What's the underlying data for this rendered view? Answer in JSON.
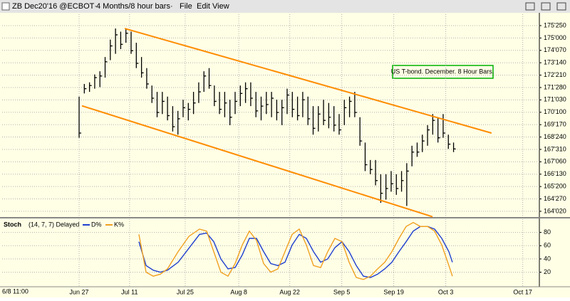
{
  "window": {
    "symbol": "ZB Dec20'16 @ECBOT·",
    "period": "4 Months/8 hour bars·",
    "menus": [
      "File",
      "Edit",
      "View"
    ],
    "timestamp": "6/8 11:00"
  },
  "chart_data": [
    {
      "type": "ohlc",
      "annotation": "US T-bond. December. 8 Hour Bars.",
      "color": "#000000",
      "x": [
        0,
        1,
        2,
        3,
        4,
        5,
        6,
        7,
        8,
        9,
        10,
        11,
        12,
        13,
        14,
        15,
        16,
        17,
        18,
        19,
        20,
        21,
        22,
        23,
        24,
        25,
        26,
        27,
        28,
        29,
        30,
        31,
        32,
        33,
        34,
        35,
        36,
        37,
        38,
        39,
        40,
        41,
        42,
        43,
        44,
        45,
        46,
        47,
        48,
        49,
        50,
        51,
        52,
        53,
        54,
        55,
        56,
        57,
        58,
        59,
        60,
        61,
        62,
        63,
        64,
        65,
        66,
        67,
        68,
        69,
        70,
        71,
        72
      ],
      "high": [
        171.3,
        172.1,
        172.2,
        172.7,
        172.9,
        173.8,
        174.9,
        175.6,
        175.4,
        175.6,
        175.4,
        174.7,
        173.8,
        173.1,
        172.0,
        171.6,
        171.6,
        171.3,
        170.7,
        170.4,
        171.1,
        170.9,
        171.6,
        172.2,
        172.9,
        173.1,
        172.0,
        171.6,
        171.6,
        171.1,
        171.6,
        172.0,
        172.2,
        172.2,
        171.6,
        171.3,
        171.6,
        171.6,
        171.1,
        171.1,
        171.8,
        171.6,
        171.3,
        171.6,
        171.3,
        170.7,
        170.7,
        171.1,
        170.9,
        170.7,
        170.2,
        171.1,
        171.3,
        171.6,
        170.0,
        168.4,
        167.3,
        167.3,
        166.4,
        166.4,
        166.6,
        166.4,
        166.6,
        167.1,
        168.2,
        168.4,
        168.9,
        169.5,
        170.2,
        170.0,
        170.2,
        168.9,
        168.4
      ],
      "low": [
        168.7,
        171.5,
        171.6,
        171.8,
        171.9,
        172.5,
        173.6,
        174.0,
        174.3,
        174.7,
        174.0,
        173.1,
        172.5,
        171.8,
        170.9,
        170.0,
        170.2,
        169.8,
        169.1,
        168.9,
        170.0,
        169.8,
        170.2,
        170.9,
        171.6,
        171.8,
        170.7,
        170.2,
        170.0,
        169.5,
        170.2,
        170.7,
        170.9,
        170.7,
        170.0,
        169.8,
        170.2,
        170.0,
        169.8,
        169.5,
        170.2,
        170.0,
        169.8,
        170.0,
        169.5,
        168.9,
        169.1,
        169.5,
        169.3,
        169.1,
        168.9,
        169.5,
        170.0,
        170.0,
        168.2,
        166.6,
        166.4,
        165.7,
        164.6,
        164.8,
        165.3,
        165.1,
        165.3,
        164.4,
        166.9,
        167.5,
        167.8,
        168.2,
        168.9,
        168.4,
        168.7,
        168.0,
        167.8
      ],
      "close": [
        169.0,
        171.8,
        172.0,
        172.5,
        172.6,
        173.5,
        174.5,
        175.2,
        174.6,
        175.3,
        174.2,
        173.4,
        172.8,
        172.1,
        171.2,
        170.3,
        171.0,
        170.1,
        169.4,
        169.9,
        170.6,
        170.5,
        170.9,
        171.6,
        172.6,
        172.0,
        171.0,
        170.5,
        170.9,
        170.0,
        171.0,
        171.5,
        171.8,
        171.2,
        170.4,
        170.7,
        170.8,
        171.2,
        170.3,
        170.6,
        171.4,
        170.5,
        170.1,
        171.1,
        169.9,
        169.3,
        170.2,
        169.8,
        170.0,
        169.5,
        169.2,
        170.6,
        171.0,
        170.3,
        168.5,
        167.0,
        166.7,
        166.0,
        165.2,
        165.5,
        165.8,
        165.5,
        166.0,
        166.6,
        167.8,
        167.8,
        168.5,
        169.2,
        169.8,
        168.7,
        169.0,
        168.3,
        168.0
      ],
      "trendlines": [
        {
          "color": "#ff8c00",
          "x": [
            8.77,
            79.3
          ],
          "y": [
            175.6,
            169.0
          ]
        },
        {
          "color": "#ff8c00",
          "x": [
            0.55,
            67.95
          ],
          "y": [
            170.72,
            163.72
          ]
        }
      ],
      "xlim": [
        -14.8,
        88.5
      ],
      "xticks": [
        {
          "value": 0,
          "label": "Jun 27"
        },
        {
          "value": 9.7,
          "label": "Jul 11"
        },
        {
          "value": 20.4,
          "label": "Jul 25"
        },
        {
          "value": 30.7,
          "label": "Aug 8"
        },
        {
          "value": 40.5,
          "label": "Aug 22"
        },
        {
          "value": 50.5,
          "label": "Sep 5"
        },
        {
          "value": 60.5,
          "label": "Sep 19"
        },
        {
          "value": 70.5,
          "label": "Oct 3"
        },
        {
          "value": 85.3,
          "label": "Oct 17"
        }
      ],
      "ylim": [
        163.7,
        176.5
      ],
      "yticks": [
        {
          "value": 175.78125,
          "label": "175'250"
        },
        {
          "value": 175.0,
          "label": "175'000"
        },
        {
          "value": 174.21875,
          "label": "174'070"
        },
        {
          "value": 173.4375,
          "label": "173'140"
        },
        {
          "value": 172.65625,
          "label": "172'210"
        },
        {
          "value": 171.875,
          "label": "171'280"
        },
        {
          "value": 171.09375,
          "label": "171'030"
        },
        {
          "value": 170.3125,
          "label": "170'100"
        },
        {
          "value": 169.53125,
          "label": "169'170"
        },
        {
          "value": 168.75,
          "label": "168'240"
        },
        {
          "value": 167.96875,
          "label": "167'310"
        },
        {
          "value": 167.1875,
          "label": "167'060"
        },
        {
          "value": 166.40625,
          "label": "166'130"
        },
        {
          "value": 165.625,
          "label": "165'200"
        },
        {
          "value": 164.84375,
          "label": "164'270"
        },
        {
          "value": 164.0625,
          "label": "164'020"
        }
      ],
      "grid": true
    },
    {
      "type": "line",
      "title": "Stoch",
      "subtitle": "(14, 7, 7) Delayed",
      "x": [
        11.5,
        12.88,
        14.25,
        15.62,
        16.99,
        19.04,
        21.1,
        23.15,
        24.52,
        25.89,
        27.26,
        28.63,
        30.0,
        31.37,
        32.74,
        34.11,
        35.48,
        36.85,
        38.22,
        39.59,
        40.96,
        42.33,
        43.7,
        45.07,
        46.44,
        47.81,
        49.18,
        50.55,
        51.92,
        53.29,
        54.66,
        56.03,
        57.4,
        58.77,
        60.14,
        61.51,
        62.88,
        64.25,
        65.62,
        66.99,
        68.36,
        69.73,
        71.1,
        71.78
      ],
      "series": [
        {
          "name": "D%",
          "color": "#1f3fd0",
          "values": [
            66,
            30,
            23,
            20,
            23,
            35,
            56,
            77,
            79,
            66,
            40,
            25,
            27,
            46,
            71,
            71,
            51,
            33,
            30,
            35,
            61,
            77,
            71,
            51,
            35,
            40,
            57,
            66,
            51,
            30,
            14,
            12,
            17,
            25,
            35,
            51,
            66,
            82,
            89,
            89,
            85,
            71,
            51,
            35
          ]
        },
        {
          "name": "K%",
          "color": "#f0a020",
          "values": [
            77,
            20,
            14,
            17,
            25,
            51,
            74,
            85,
            82,
            51,
            20,
            14,
            33,
            61,
            82,
            68,
            33,
            20,
            25,
            51,
            77,
            85,
            61,
            30,
            27,
            51,
            71,
            66,
            35,
            12,
            9,
            14,
            25,
            35,
            51,
            71,
            89,
            95,
            89,
            89,
            82,
            61,
            30,
            14
          ]
        }
      ],
      "ylim": [
        -2,
        100
      ],
      "yticks": [
        20,
        40,
        60,
        80
      ],
      "grid": true
    }
  ]
}
